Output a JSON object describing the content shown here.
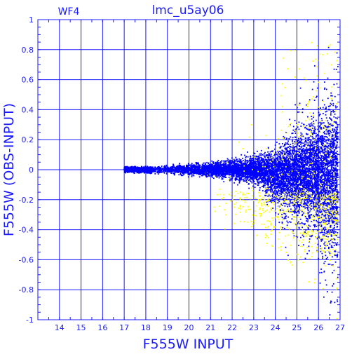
{
  "chart_data": {
    "type": "scatter",
    "title": "lmc_u5ay06",
    "panel_label": "WF4",
    "xlabel": "F555W INPUT",
    "ylabel": "F555W (OBS-INPUT)",
    "xlim": [
      13,
      27
    ],
    "ylim": [
      -1,
      1
    ],
    "x_ticks": [
      14,
      15,
      16,
      17,
      18,
      19,
      20,
      21,
      22,
      23,
      24,
      25,
      26,
      27
    ],
    "y_ticks": [
      -1,
      -0.8,
      -0.6,
      -0.4,
      -0.2,
      0,
      0.2,
      0.4,
      0.6,
      0.8,
      1
    ],
    "y_tick_labels": [
      "-1",
      "-0.8",
      "-0.6",
      "-0.4",
      "-0.2",
      "0",
      "0.2",
      "0.4",
      "0.6",
      "0.8",
      "1"
    ],
    "grid": true,
    "colors": {
      "frame": "#1a1aff",
      "grid": "#1a1aff",
      "text": "#1a1aff"
    },
    "series": [
      {
        "color": "#0000ff",
        "point_count_estimate": 9000,
        "x_range": [
          17.0,
          26.9
        ],
        "bulk_center": [
          0.0,
          0.0
        ],
        "spread_model": [
          [
            17.0,
            0.02
          ],
          [
            18.0,
            0.02
          ],
          [
            19.0,
            0.03
          ],
          [
            20.0,
            0.04
          ],
          [
            21.0,
            0.05
          ],
          [
            22.0,
            0.07
          ],
          [
            23.0,
            0.1
          ],
          [
            24.0,
            0.16
          ],
          [
            25.0,
            0.24
          ],
          [
            26.0,
            0.35
          ],
          [
            26.9,
            0.5
          ]
        ],
        "density_peak": 25.2
      },
      {
        "color": "#ffff00",
        "point_count_estimate": 700,
        "x_range": [
          21.0,
          26.9
        ],
        "bulk_center_range": [
          -0.5,
          0.1
        ],
        "spread_model": [
          [
            21.0,
            0.12
          ],
          [
            23.0,
            0.2
          ],
          [
            25.0,
            0.35
          ],
          [
            26.5,
            0.45
          ]
        ]
      }
    ]
  }
}
